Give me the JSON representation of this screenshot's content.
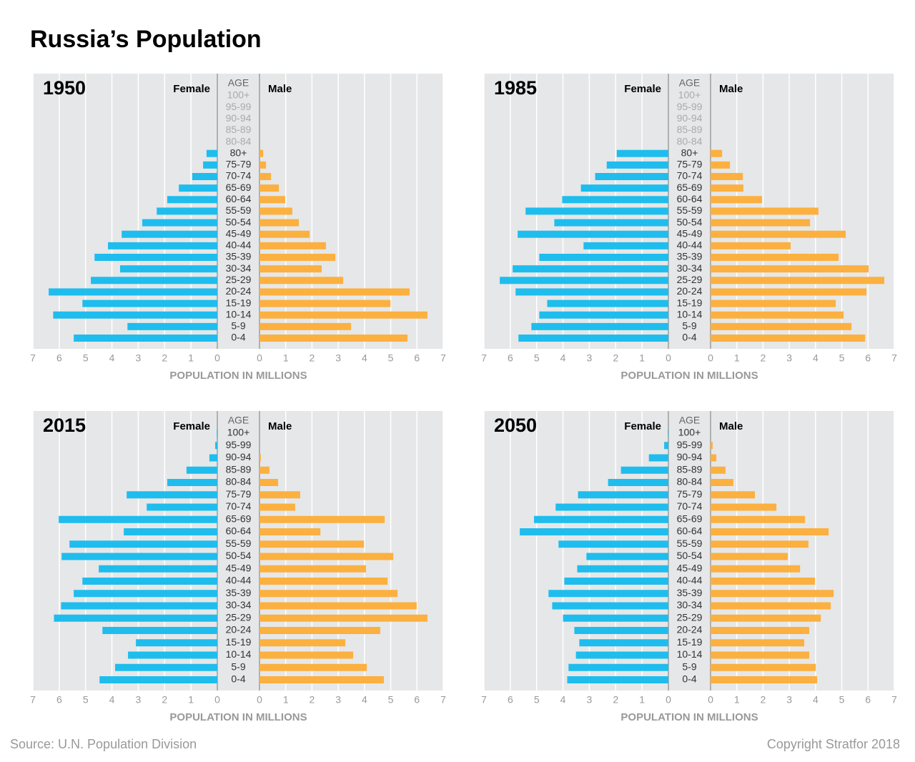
{
  "title": "Russia’s Population",
  "source": "Source: U.N. Population Division",
  "copyright": "Copyright Stratfor 2018",
  "chart_data": [
    {
      "type": "pyramid",
      "title": "1950",
      "age_label": "AGE",
      "x_label": "POPULATION IN MILLIONS",
      "categories": [
        "100+",
        "95-99",
        "90-94",
        "85-89",
        "80-84",
        "80+",
        "75-79",
        "70-74",
        "65-69",
        "60-64",
        "55-59",
        "50-54",
        "45-49",
        "40-44",
        "35-39",
        "30-34",
        "25-29",
        "20-24",
        "15-19",
        "10-14",
        "5-9",
        "0-4"
      ],
      "series": [
        {
          "name": "Female",
          "color": "#1ebdee",
          "values": [
            null,
            null,
            null,
            null,
            null,
            0.41,
            0.54,
            0.95,
            1.46,
            1.9,
            2.3,
            2.85,
            3.63,
            4.15,
            4.66,
            3.69,
            4.8,
            6.4,
            5.12,
            6.23,
            3.41,
            5.45
          ]
        },
        {
          "name": "Male",
          "color": "#fbb040",
          "values": [
            null,
            null,
            null,
            null,
            null,
            0.14,
            0.25,
            0.44,
            0.74,
            0.98,
            1.25,
            1.5,
            1.91,
            2.53,
            2.89,
            2.37,
            3.19,
            5.72,
            4.99,
            6.4,
            3.49,
            5.64
          ]
        }
      ],
      "xlim": [
        0,
        7
      ],
      "xticks": [
        0,
        1,
        2,
        3,
        4,
        5,
        6,
        7
      ],
      "grid": true
    },
    {
      "type": "pyramid",
      "title": "1985",
      "age_label": "AGE",
      "x_label": "POPULATION IN MILLIONS",
      "categories": [
        "100+",
        "95-99",
        "90-94",
        "85-89",
        "80-84",
        "80+",
        "75-79",
        "70-74",
        "65-69",
        "60-64",
        "55-59",
        "50-54",
        "45-49",
        "40-44",
        "35-39",
        "30-34",
        "25-29",
        "20-24",
        "15-19",
        "10-14",
        "5-9",
        "0-4"
      ],
      "series": [
        {
          "name": "Female",
          "color": "#1ebdee",
          "values": [
            null,
            null,
            null,
            null,
            null,
            1.96,
            2.34,
            2.78,
            3.32,
            4.03,
            5.42,
            4.33,
            5.72,
            3.22,
            4.9,
            5.91,
            6.4,
            5.8,
            4.6,
            4.9,
            5.2,
            5.69
          ]
        },
        {
          "name": "Male",
          "color": "#fbb040",
          "values": [
            null,
            null,
            null,
            null,
            null,
            0.44,
            0.74,
            1.23,
            1.25,
            1.96,
            4.11,
            3.79,
            5.15,
            3.05,
            4.88,
            6.02,
            6.62,
            5.94,
            4.77,
            5.07,
            5.37,
            5.89
          ]
        }
      ],
      "xlim": [
        0,
        7
      ],
      "xticks": [
        0,
        1,
        2,
        3,
        4,
        5,
        6,
        7
      ],
      "grid": true
    },
    {
      "type": "pyramid",
      "title": "2015",
      "age_label": "AGE",
      "x_label": "POPULATION IN MILLIONS",
      "categories": [
        "100+",
        "95-99",
        "90-94",
        "85-89",
        "80-84",
        "75-79",
        "70-74",
        "65-69",
        "60-64",
        "55-59",
        "50-54",
        "45-49",
        "40-44",
        "35-39",
        "30-34",
        "25-29",
        "20-24",
        "15-19",
        "10-14",
        "5-9",
        "0-4"
      ],
      "series": [
        {
          "name": "Female",
          "color": "#1ebdee",
          "values": [
            0.02,
            0.08,
            0.3,
            1.17,
            1.9,
            3.44,
            2.68,
            6.02,
            3.55,
            5.61,
            5.91,
            4.5,
            5.12,
            5.45,
            5.93,
            6.2,
            4.36,
            3.09,
            3.39,
            3.88,
            4.47
          ]
        },
        {
          "name": "Male",
          "color": "#fbb040",
          "values": [
            0,
            0,
            0.05,
            0.38,
            0.71,
            1.55,
            1.36,
            4.77,
            2.32,
            3.98,
            5.1,
            4.06,
            4.88,
            5.26,
            5.99,
            6.4,
            4.6,
            3.27,
            3.57,
            4.09,
            4.74
          ]
        }
      ],
      "xlim": [
        0,
        7
      ],
      "xticks": [
        0,
        1,
        2,
        3,
        4,
        5,
        6,
        7
      ],
      "grid": true
    },
    {
      "type": "pyramid",
      "title": "2050",
      "age_label": "AGE",
      "x_label": "POPULATION IN MILLIONS",
      "categories": [
        "100+",
        "95-99",
        "90-94",
        "85-89",
        "80-84",
        "75-79",
        "70-74",
        "65-69",
        "60-64",
        "55-59",
        "50-54",
        "45-49",
        "40-44",
        "35-39",
        "30-34",
        "25-29",
        "20-24",
        "15-19",
        "10-14",
        "5-9",
        "0-4"
      ],
      "series": [
        {
          "name": "Female",
          "color": "#1ebdee",
          "values": [
            0.02,
            0.16,
            0.74,
            1.8,
            2.29,
            3.43,
            4.28,
            5.1,
            5.64,
            4.17,
            3.11,
            3.46,
            3.95,
            4.55,
            4.41,
            4.0,
            3.57,
            3.38,
            3.51,
            3.79,
            3.84
          ]
        },
        {
          "name": "Male",
          "color": "#fbb040",
          "values": [
            0,
            0.08,
            0.22,
            0.57,
            0.87,
            1.69,
            2.51,
            3.6,
            4.5,
            3.73,
            2.94,
            3.41,
            3.98,
            4.69,
            4.58,
            4.2,
            3.76,
            3.57,
            3.76,
            4.01,
            4.06
          ]
        }
      ],
      "xlim": [
        0,
        7
      ],
      "xticks": [
        0,
        1,
        2,
        3,
        4,
        5,
        6,
        7
      ],
      "grid": true
    }
  ]
}
